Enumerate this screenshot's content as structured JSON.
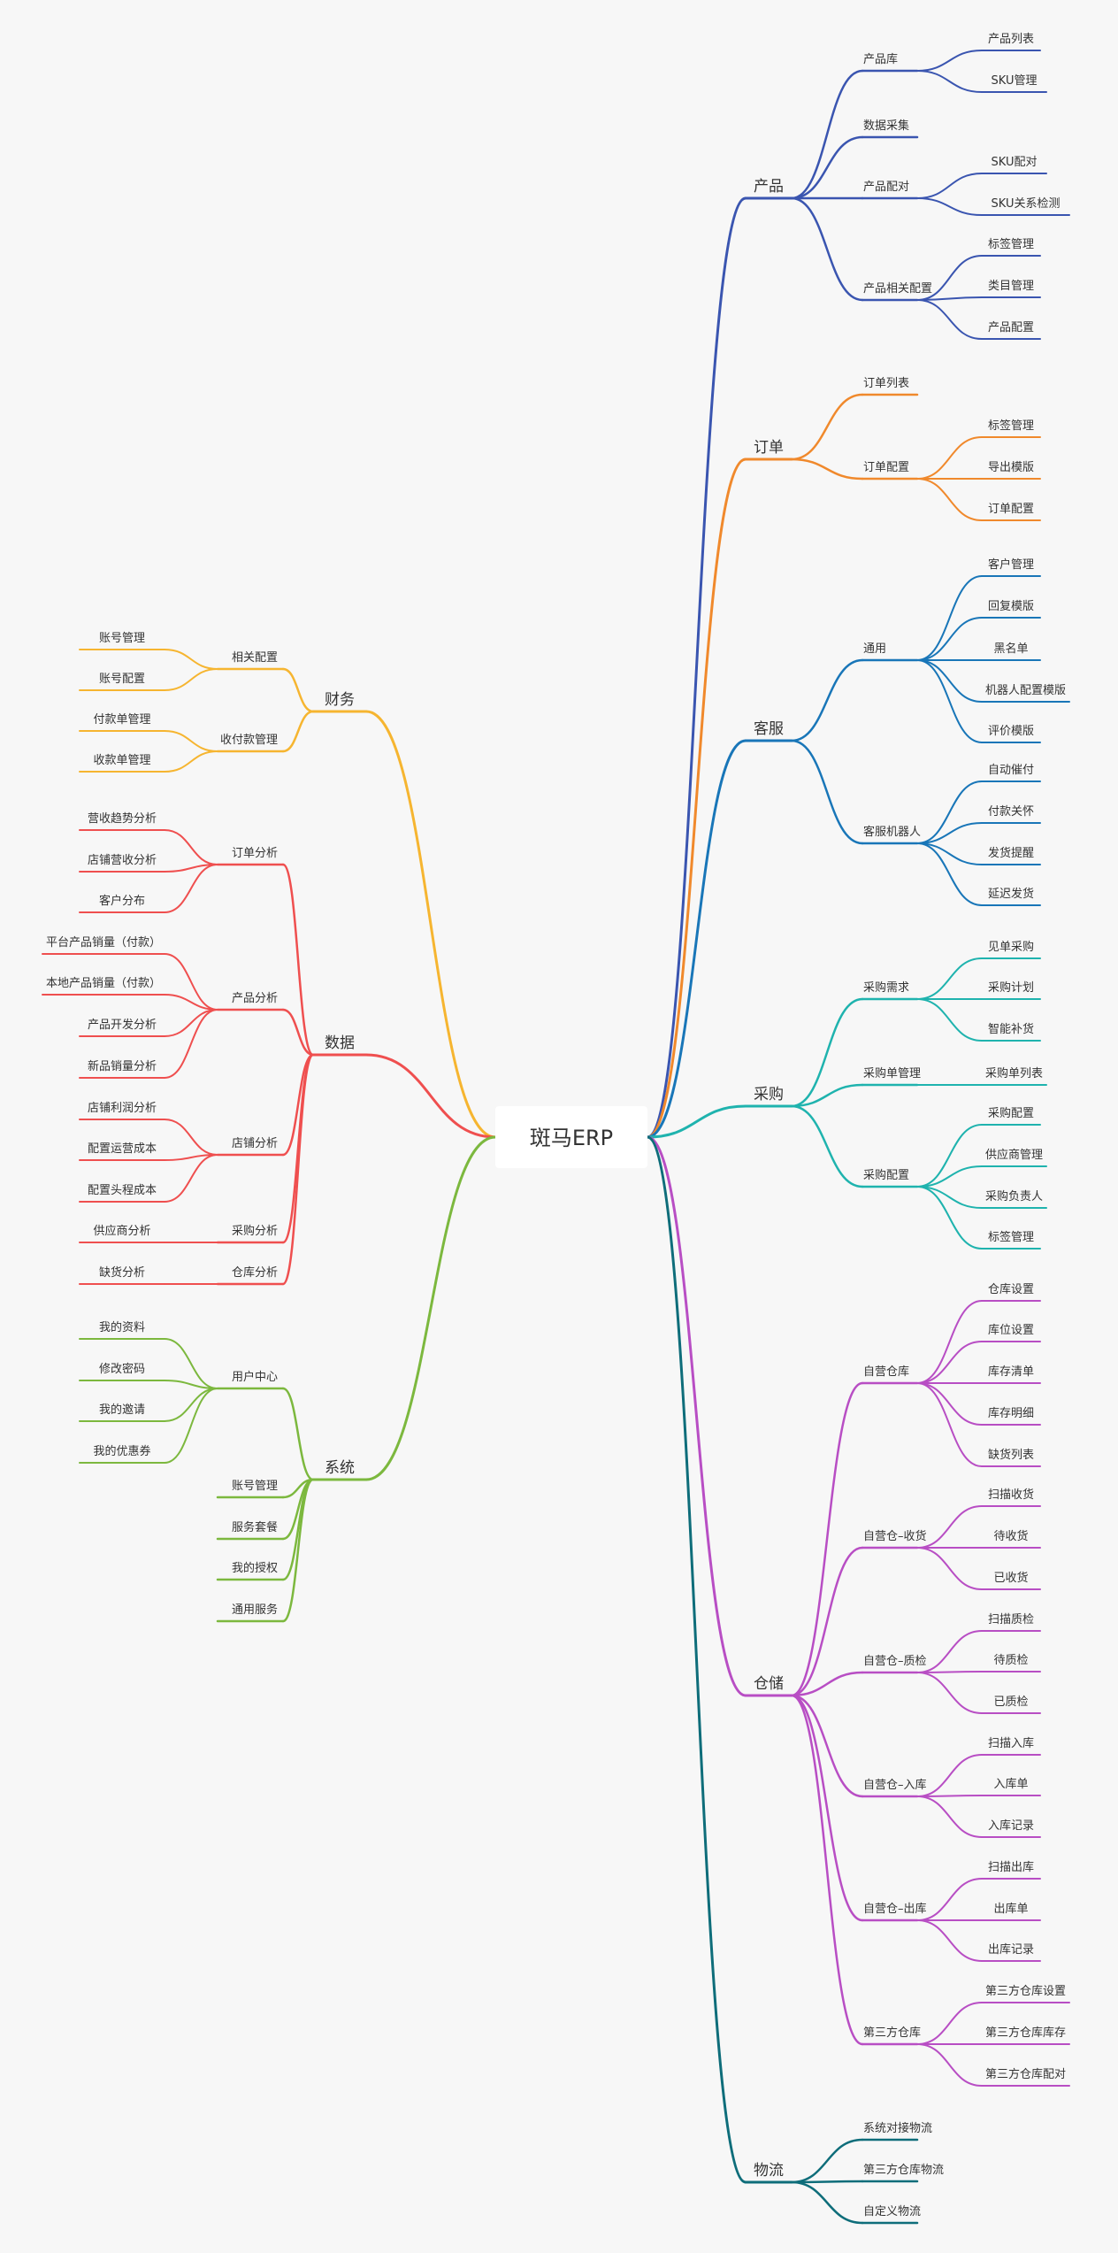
{
  "root": {
    "label": "斑马ERP"
  },
  "branches": [
    {
      "label": "产品",
      "side": "right",
      "color": "#3a55b0",
      "children": [
        {
          "label": "产品库",
          "children": [
            {
              "label": "产品列表"
            },
            {
              "label": "SKU管理"
            }
          ]
        },
        {
          "label": "数据采集",
          "children": []
        },
        {
          "label": "产品配对",
          "children": [
            {
              "label": "SKU配对"
            },
            {
              "label": "SKU关系检测"
            }
          ]
        },
        {
          "label": "产品相关配置",
          "children": [
            {
              "label": "标签管理"
            },
            {
              "label": "类目管理"
            },
            {
              "label": "产品配置"
            }
          ]
        }
      ]
    },
    {
      "label": "订单",
      "side": "right",
      "color": "#f0892c",
      "children": [
        {
          "label": "订单列表",
          "children": []
        },
        {
          "label": "订单配置",
          "children": [
            {
              "label": "标签管理"
            },
            {
              "label": "导出模版"
            },
            {
              "label": "订单配置"
            }
          ]
        }
      ]
    },
    {
      "label": "客服",
      "side": "right",
      "color": "#1976b8",
      "children": [
        {
          "label": "通用",
          "children": [
            {
              "label": "客户管理"
            },
            {
              "label": "回复模版"
            },
            {
              "label": "黑名单"
            },
            {
              "label": "机器人配置模版"
            },
            {
              "label": "评价模版"
            }
          ]
        },
        {
          "label": "客服机器人",
          "children": [
            {
              "label": "自动催付"
            },
            {
              "label": "付款关怀"
            },
            {
              "label": "发货提醒"
            },
            {
              "label": "延迟发货"
            }
          ]
        }
      ]
    },
    {
      "label": "采购",
      "side": "right",
      "color": "#1fb3ae",
      "children": [
        {
          "label": "采购需求",
          "children": [
            {
              "label": "见单采购"
            },
            {
              "label": "采购计划"
            },
            {
              "label": "智能补货"
            }
          ]
        },
        {
          "label": "采购单管理",
          "children": [
            {
              "label": "采购单列表"
            }
          ]
        },
        {
          "label": "采购配置",
          "children": [
            {
              "label": "采购配置"
            },
            {
              "label": "供应商管理"
            },
            {
              "label": "采购负责人"
            },
            {
              "label": "标签管理"
            }
          ]
        }
      ]
    },
    {
      "label": "仓储",
      "side": "right",
      "color": "#b84ec4",
      "children": [
        {
          "label": "自营仓库",
          "children": [
            {
              "label": "仓库设置"
            },
            {
              "label": "库位设置"
            },
            {
              "label": "库存清单"
            },
            {
              "label": "库存明细"
            },
            {
              "label": "缺货列表"
            }
          ]
        },
        {
          "label": "自营仓–收货",
          "children": [
            {
              "label": "扫描收货"
            },
            {
              "label": "待收货"
            },
            {
              "label": "已收货"
            }
          ]
        },
        {
          "label": "自营仓–质检",
          "children": [
            {
              "label": "扫描质检"
            },
            {
              "label": "待质检"
            },
            {
              "label": "已质检"
            }
          ]
        },
        {
          "label": "自营仓–入库",
          "children": [
            {
              "label": "扫描入库"
            },
            {
              "label": "入库单"
            },
            {
              "label": "入库记录"
            }
          ]
        },
        {
          "label": "自营仓–出库",
          "children": [
            {
              "label": "扫描出库"
            },
            {
              "label": "出库单"
            },
            {
              "label": "出库记录"
            }
          ]
        },
        {
          "label": "第三方仓库",
          "children": [
            {
              "label": "第三方仓库设置"
            },
            {
              "label": "第三方仓库库存"
            },
            {
              "label": "第三方仓库配对"
            }
          ]
        }
      ]
    },
    {
      "label": "物流",
      "side": "right",
      "color": "#0e6d7a",
      "children": [
        {
          "label": "系统对接物流",
          "children": []
        },
        {
          "label": "第三方仓库物流",
          "children": []
        },
        {
          "label": "自定义物流",
          "children": []
        }
      ]
    },
    {
      "label": "财务",
      "side": "left",
      "color": "#f6b530",
      "children": [
        {
          "label": "相关配置",
          "children": [
            {
              "label": "账号管理"
            },
            {
              "label": "账号配置"
            }
          ]
        },
        {
          "label": "收付款管理",
          "children": [
            {
              "label": "付款单管理"
            },
            {
              "label": "收款单管理"
            }
          ]
        }
      ]
    },
    {
      "label": "数据",
      "side": "left",
      "color": "#ef4f4f",
      "children": [
        {
          "label": "订单分析",
          "children": [
            {
              "label": "营收趋势分析"
            },
            {
              "label": "店铺营收分析"
            },
            {
              "label": "客户分布"
            }
          ]
        },
        {
          "label": "产品分析",
          "children": [
            {
              "label": "平台产品销量（付款）"
            },
            {
              "label": "本地产品销量（付款）"
            },
            {
              "label": "产品开发分析"
            },
            {
              "label": "新品销量分析"
            }
          ]
        },
        {
          "label": "店铺分析",
          "children": [
            {
              "label": "店铺利润分析"
            },
            {
              "label": "配置运营成本"
            },
            {
              "label": "配置头程成本"
            }
          ]
        },
        {
          "label": "采购分析",
          "children": [
            {
              "label": "供应商分析"
            }
          ]
        },
        {
          "label": "仓库分析",
          "children": [
            {
              "label": "缺货分析"
            }
          ]
        }
      ]
    },
    {
      "label": "系统",
      "side": "left",
      "color": "#7cb83e",
      "children": [
        {
          "label": "用户中心",
          "children": [
            {
              "label": "我的资料"
            },
            {
              "label": "修改密码"
            },
            {
              "label": "我的邀请"
            },
            {
              "label": "我的优惠券"
            }
          ]
        },
        {
          "label": "账号管理",
          "children": []
        },
        {
          "label": "服务套餐",
          "children": []
        },
        {
          "label": "我的授权",
          "children": []
        },
        {
          "label": "通用服务",
          "children": []
        }
      ]
    }
  ]
}
